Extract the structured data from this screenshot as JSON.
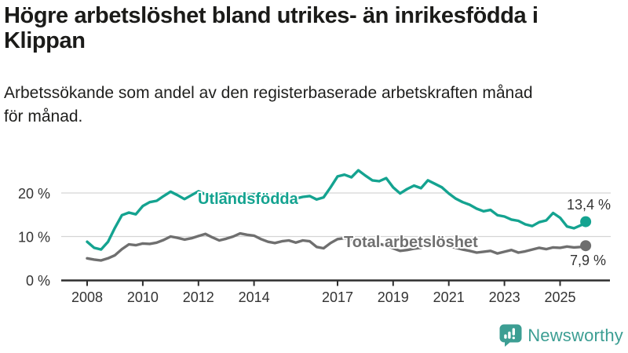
{
  "header": {
    "title_line1": "Högre arbetslöshet bland utrikes- än inrikesfödda i",
    "title_line2": "Klippan",
    "subtitle_line1": "Arbetssökande som andel av den registerbaserade arbetskraften månad",
    "subtitle_line2": "för månad."
  },
  "chart_data": {
    "type": "line",
    "unit": "%",
    "x_axis": {
      "ticks": [
        2008,
        2010,
        2012,
        2014,
        2017,
        2019,
        2021,
        2023,
        2025
      ],
      "labels": [
        "2008",
        "2010",
        "2012",
        "2014",
        "2017",
        "2019",
        "2021",
        "2023",
        "2025"
      ]
    },
    "y_axis": {
      "ticks": [
        0,
        10,
        20
      ],
      "labels": [
        "0 %",
        "10 %",
        "20 %"
      ],
      "range": [
        0,
        27
      ]
    },
    "x_range": [
      2008.0,
      2025.92
    ],
    "grid": "horizontal-only",
    "legend": "inline-labels",
    "series": [
      {
        "name": "Utlandsfödda",
        "color": "#14A390",
        "end_label": "13,4 %",
        "last_value": 13.4,
        "points": [
          [
            2008.0,
            8.8
          ],
          [
            2008.25,
            7.4
          ],
          [
            2008.5,
            7.0
          ],
          [
            2008.75,
            8.8
          ],
          [
            2009.0,
            12.0
          ],
          [
            2009.25,
            14.9
          ],
          [
            2009.5,
            15.5
          ],
          [
            2009.75,
            15.1
          ],
          [
            2010.0,
            17.0
          ],
          [
            2010.25,
            17.9
          ],
          [
            2010.5,
            18.2
          ],
          [
            2010.75,
            19.3
          ],
          [
            2011.0,
            20.3
          ],
          [
            2011.25,
            19.5
          ],
          [
            2011.5,
            18.6
          ],
          [
            2011.75,
            19.5
          ],
          [
            2012.0,
            20.4
          ],
          [
            2012.25,
            19.7
          ],
          [
            2012.5,
            19.2
          ],
          [
            2012.75,
            19.6
          ],
          [
            2013.0,
            19.9
          ],
          [
            2013.25,
            19.3
          ],
          [
            2013.5,
            19.0
          ],
          [
            2013.75,
            19.4
          ],
          [
            2014.0,
            19.7
          ],
          [
            2014.25,
            19.1
          ],
          [
            2014.5,
            18.8
          ],
          [
            2014.75,
            19.2
          ],
          [
            2015.0,
            19.5
          ],
          [
            2015.25,
            19.0
          ],
          [
            2015.5,
            18.7
          ],
          [
            2015.75,
            19.1
          ],
          [
            2016.0,
            19.3
          ],
          [
            2016.25,
            18.5
          ],
          [
            2016.5,
            19.0
          ],
          [
            2016.75,
            21.3
          ],
          [
            2017.0,
            23.8
          ],
          [
            2017.25,
            24.2
          ],
          [
            2017.5,
            23.6
          ],
          [
            2017.75,
            25.2
          ],
          [
            2018.0,
            24.0
          ],
          [
            2018.25,
            22.9
          ],
          [
            2018.5,
            22.7
          ],
          [
            2018.75,
            23.4
          ],
          [
            2019.0,
            21.3
          ],
          [
            2019.25,
            19.9
          ],
          [
            2019.5,
            20.9
          ],
          [
            2019.75,
            21.7
          ],
          [
            2020.0,
            21.1
          ],
          [
            2020.25,
            22.9
          ],
          [
            2020.5,
            22.1
          ],
          [
            2020.75,
            21.3
          ],
          [
            2021.0,
            19.9
          ],
          [
            2021.25,
            18.7
          ],
          [
            2021.5,
            17.9
          ],
          [
            2021.75,
            17.3
          ],
          [
            2022.0,
            16.4
          ],
          [
            2022.25,
            15.8
          ],
          [
            2022.5,
            16.1
          ],
          [
            2022.75,
            14.9
          ],
          [
            2023.0,
            14.6
          ],
          [
            2023.25,
            13.9
          ],
          [
            2023.5,
            13.6
          ],
          [
            2023.75,
            12.8
          ],
          [
            2024.0,
            12.4
          ],
          [
            2024.25,
            13.3
          ],
          [
            2024.5,
            13.7
          ],
          [
            2024.75,
            15.4
          ],
          [
            2025.0,
            14.3
          ],
          [
            2025.25,
            12.3
          ],
          [
            2025.5,
            11.9
          ],
          [
            2025.75,
            12.6
          ],
          [
            2025.92,
            13.4
          ]
        ]
      },
      {
        "name": "Total arbetslöshet",
        "color": "#6F6F6F",
        "end_label": "7,9 %",
        "last_value": 7.9,
        "points": [
          [
            2008.0,
            5.0
          ],
          [
            2008.25,
            4.7
          ],
          [
            2008.5,
            4.5
          ],
          [
            2008.75,
            5.0
          ],
          [
            2009.0,
            5.7
          ],
          [
            2009.25,
            7.1
          ],
          [
            2009.5,
            8.2
          ],
          [
            2009.75,
            8.0
          ],
          [
            2010.0,
            8.4
          ],
          [
            2010.25,
            8.3
          ],
          [
            2010.5,
            8.6
          ],
          [
            2010.75,
            9.2
          ],
          [
            2011.0,
            10.0
          ],
          [
            2011.25,
            9.7
          ],
          [
            2011.5,
            9.3
          ],
          [
            2011.75,
            9.6
          ],
          [
            2012.0,
            10.1
          ],
          [
            2012.25,
            10.6
          ],
          [
            2012.5,
            9.8
          ],
          [
            2012.75,
            9.1
          ],
          [
            2013.0,
            9.5
          ],
          [
            2013.25,
            10.0
          ],
          [
            2013.5,
            10.7
          ],
          [
            2013.75,
            10.4
          ],
          [
            2014.0,
            10.2
          ],
          [
            2014.25,
            9.4
          ],
          [
            2014.5,
            8.8
          ],
          [
            2014.75,
            8.5
          ],
          [
            2015.0,
            8.9
          ],
          [
            2015.25,
            9.1
          ],
          [
            2015.5,
            8.6
          ],
          [
            2015.75,
            9.1
          ],
          [
            2016.0,
            8.9
          ],
          [
            2016.25,
            7.6
          ],
          [
            2016.5,
            7.3
          ],
          [
            2016.75,
            8.5
          ],
          [
            2017.0,
            9.4
          ],
          [
            2017.25,
            9.6
          ],
          [
            2017.5,
            9.2
          ],
          [
            2017.75,
            8.9
          ],
          [
            2018.0,
            9.1
          ],
          [
            2018.25,
            8.6
          ],
          [
            2018.5,
            8.3
          ],
          [
            2018.75,
            7.9
          ],
          [
            2019.0,
            7.3
          ],
          [
            2019.25,
            6.7
          ],
          [
            2019.5,
            6.9
          ],
          [
            2019.75,
            7.2
          ],
          [
            2020.0,
            7.4
          ],
          [
            2020.25,
            8.2
          ],
          [
            2020.5,
            8.5
          ],
          [
            2020.75,
            8.1
          ],
          [
            2021.0,
            7.8
          ],
          [
            2021.25,
            7.4
          ],
          [
            2021.5,
            7.0
          ],
          [
            2021.75,
            6.7
          ],
          [
            2022.0,
            6.3
          ],
          [
            2022.25,
            6.5
          ],
          [
            2022.5,
            6.7
          ],
          [
            2022.75,
            6.1
          ],
          [
            2023.0,
            6.5
          ],
          [
            2023.25,
            6.9
          ],
          [
            2023.5,
            6.3
          ],
          [
            2023.75,
            6.6
          ],
          [
            2024.0,
            7.0
          ],
          [
            2024.25,
            7.4
          ],
          [
            2024.5,
            7.1
          ],
          [
            2024.75,
            7.5
          ],
          [
            2025.0,
            7.4
          ],
          [
            2025.25,
            7.7
          ],
          [
            2025.5,
            7.5
          ],
          [
            2025.75,
            7.6
          ],
          [
            2025.92,
            7.9
          ]
        ]
      }
    ]
  },
  "branding": {
    "name": "Newsworthy"
  },
  "colors": {
    "accent_teal": "#14A390",
    "logo_teal": "#3C9E93",
    "series_gray": "#6F6F6F",
    "axis": "#2E2E2E",
    "grid": "#D5D5D5",
    "title_text": "#1B1B19",
    "label_text": "#333333"
  }
}
